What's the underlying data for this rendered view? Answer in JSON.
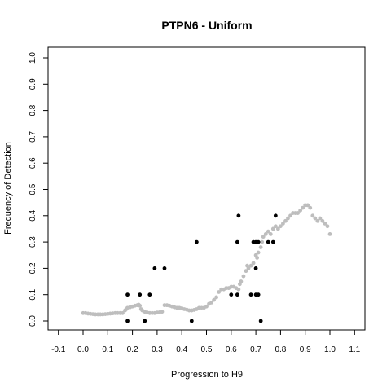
{
  "chart_data": {
    "type": "scatter",
    "title": "PTPN6 - Uniform",
    "xlabel": "Progression to H9",
    "ylabel": "Frequency of Detection",
    "xlim": [
      -0.1,
      1.1
    ],
    "ylim": [
      0.0,
      1.0
    ],
    "x_ticks": [
      "-0.1",
      "0.0",
      "0.1",
      "0.2",
      "0.3",
      "0.4",
      "0.5",
      "0.6",
      "0.7",
      "0.8",
      "0.9",
      "1.0",
      "1.1"
    ],
    "y_ticks": [
      "0.0",
      "0.1",
      "0.2",
      "0.3",
      "0.4",
      "0.5",
      "0.6",
      "0.7",
      "0.8",
      "0.9",
      "1.0"
    ],
    "grid": false,
    "series": [
      {
        "color": "#bebebe",
        "marker": "circle-small",
        "points": [
          [
            0.0,
            0.03
          ],
          [
            0.01,
            0.03
          ],
          [
            0.02,
            0.028
          ],
          [
            0.03,
            0.027
          ],
          [
            0.04,
            0.026
          ],
          [
            0.05,
            0.025
          ],
          [
            0.06,
            0.025
          ],
          [
            0.07,
            0.025
          ],
          [
            0.08,
            0.025
          ],
          [
            0.09,
            0.026
          ],
          [
            0.1,
            0.027
          ],
          [
            0.11,
            0.028
          ],
          [
            0.12,
            0.029
          ],
          [
            0.13,
            0.03
          ],
          [
            0.14,
            0.03
          ],
          [
            0.15,
            0.03
          ],
          [
            0.16,
            0.03
          ],
          [
            0.17,
            0.04
          ],
          [
            0.175,
            0.045
          ],
          [
            0.18,
            0.05
          ],
          [
            0.19,
            0.052
          ],
          [
            0.2,
            0.055
          ],
          [
            0.21,
            0.058
          ],
          [
            0.22,
            0.06
          ],
          [
            0.225,
            0.062
          ],
          [
            0.23,
            0.058
          ],
          [
            0.235,
            0.045
          ],
          [
            0.24,
            0.04
          ],
          [
            0.25,
            0.035
          ],
          [
            0.26,
            0.032
          ],
          [
            0.27,
            0.03
          ],
          [
            0.28,
            0.03
          ],
          [
            0.29,
            0.03
          ],
          [
            0.3,
            0.032
          ],
          [
            0.31,
            0.033
          ],
          [
            0.32,
            0.035
          ],
          [
            0.33,
            0.06
          ],
          [
            0.34,
            0.06
          ],
          [
            0.35,
            0.058
          ],
          [
            0.36,
            0.055
          ],
          [
            0.37,
            0.052
          ],
          [
            0.38,
            0.05
          ],
          [
            0.39,
            0.05
          ],
          [
            0.4,
            0.048
          ],
          [
            0.41,
            0.045
          ],
          [
            0.42,
            0.043
          ],
          [
            0.43,
            0.04
          ],
          [
            0.44,
            0.04
          ],
          [
            0.45,
            0.042
          ],
          [
            0.46,
            0.045
          ],
          [
            0.47,
            0.05
          ],
          [
            0.48,
            0.05
          ],
          [
            0.49,
            0.05
          ],
          [
            0.5,
            0.055
          ],
          [
            0.51,
            0.065
          ],
          [
            0.52,
            0.07
          ],
          [
            0.53,
            0.08
          ],
          [
            0.54,
            0.09
          ],
          [
            0.55,
            0.11
          ],
          [
            0.56,
            0.12
          ],
          [
            0.57,
            0.12
          ],
          [
            0.58,
            0.125
          ],
          [
            0.59,
            0.125
          ],
          [
            0.6,
            0.13
          ],
          [
            0.61,
            0.13
          ],
          [
            0.62,
            0.125
          ],
          [
            0.63,
            0.12
          ],
          [
            0.635,
            0.14
          ],
          [
            0.64,
            0.15
          ],
          [
            0.65,
            0.17
          ],
          [
            0.66,
            0.19
          ],
          [
            0.665,
            0.21
          ],
          [
            0.67,
            0.2
          ],
          [
            0.68,
            0.21
          ],
          [
            0.69,
            0.22
          ],
          [
            0.7,
            0.25
          ],
          [
            0.705,
            0.24
          ],
          [
            0.71,
            0.26
          ],
          [
            0.72,
            0.28
          ],
          [
            0.725,
            0.3
          ],
          [
            0.73,
            0.32
          ],
          [
            0.74,
            0.33
          ],
          [
            0.75,
            0.34
          ],
          [
            0.76,
            0.33
          ],
          [
            0.77,
            0.35
          ],
          [
            0.78,
            0.36
          ],
          [
            0.79,
            0.35
          ],
          [
            0.8,
            0.36
          ],
          [
            0.81,
            0.37
          ],
          [
            0.82,
            0.38
          ],
          [
            0.83,
            0.39
          ],
          [
            0.84,
            0.4
          ],
          [
            0.85,
            0.41
          ],
          [
            0.86,
            0.41
          ],
          [
            0.87,
            0.41
          ],
          [
            0.88,
            0.42
          ],
          [
            0.89,
            0.43
          ],
          [
            0.9,
            0.44
          ],
          [
            0.91,
            0.44
          ],
          [
            0.92,
            0.43
          ],
          [
            0.93,
            0.4
          ],
          [
            0.94,
            0.39
          ],
          [
            0.95,
            0.38
          ],
          [
            0.96,
            0.39
          ],
          [
            0.97,
            0.38
          ],
          [
            0.98,
            0.37
          ],
          [
            0.99,
            0.36
          ],
          [
            1.0,
            0.33
          ]
        ]
      },
      {
        "color": "#000000",
        "marker": "circle",
        "points": [
          [
            0.18,
            0.1
          ],
          [
            0.18,
            0.0
          ],
          [
            0.23,
            0.1
          ],
          [
            0.25,
            0.0
          ],
          [
            0.27,
            0.1
          ],
          [
            0.29,
            0.2
          ],
          [
            0.33,
            0.2
          ],
          [
            0.44,
            0.0
          ],
          [
            0.46,
            0.3
          ],
          [
            0.6,
            0.1
          ],
          [
            0.625,
            0.1
          ],
          [
            0.625,
            0.3
          ],
          [
            0.63,
            0.4
          ],
          [
            0.68,
            0.1
          ],
          [
            0.69,
            0.3
          ],
          [
            0.7,
            0.3
          ],
          [
            0.7,
            0.1
          ],
          [
            0.7,
            0.2
          ],
          [
            0.71,
            0.3
          ],
          [
            0.71,
            0.1
          ],
          [
            0.72,
            0.0
          ],
          [
            0.75,
            0.3
          ],
          [
            0.77,
            0.3
          ],
          [
            0.78,
            0.4
          ]
        ]
      }
    ]
  }
}
